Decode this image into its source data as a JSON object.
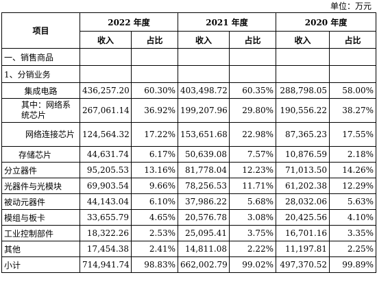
{
  "unit_label": "单位：万元",
  "header": {
    "item": "项目",
    "years": [
      "2022 年度",
      "2021 年度",
      "2020 年度"
    ],
    "income": "收入",
    "ratio": "占比"
  },
  "sections": {
    "sales": "一、销售商品",
    "distribution": "1、分销业务"
  },
  "rows": [
    {
      "label": "集成电路",
      "v": [
        "436,257.20",
        "60.30%",
        "403,498.72",
        "60.35%",
        "288,798.05",
        "58.00%"
      ]
    },
    {
      "label": "其中：网络系统芯片",
      "v": [
        "267,061.14",
        "36.92%",
        "199,207.96",
        "29.80%",
        "190,556.22",
        "38.27%"
      ]
    },
    {
      "label": "网络连接芯片",
      "v": [
        "124,564.32",
        "17.22%",
        "153,651.68",
        "22.98%",
        "87,365.23",
        "17.55%"
      ]
    },
    {
      "label": "存储芯片",
      "v": [
        "44,631.74",
        "6.17%",
        "50,639.08",
        "7.57%",
        "10,876.59",
        "2.18%"
      ]
    },
    {
      "label": "分立器件",
      "v": [
        "95,205.53",
        "13.16%",
        "81,778.04",
        "12.23%",
        "71,013.50",
        "14.26%"
      ]
    },
    {
      "label": "光器件与光模块",
      "v": [
        "69,903.54",
        "9.66%",
        "78,256.53",
        "11.71%",
        "61,202.38",
        "12.29%"
      ]
    },
    {
      "label": "被动元器件",
      "v": [
        "44,143.04",
        "6.10%",
        "37,986.22",
        "5.68%",
        "28,032.06",
        "5.63%"
      ]
    },
    {
      "label": "模组与板卡",
      "v": [
        "33,655.79",
        "4.65%",
        "20,576.78",
        "3.08%",
        "20,425.56",
        "4.10%"
      ]
    },
    {
      "label": "工业控制部件",
      "v": [
        "18,322.26",
        "2.53%",
        "25,095.41",
        "3.75%",
        "16,701.16",
        "3.35%"
      ]
    },
    {
      "label": "其他",
      "v": [
        "17,454.38",
        "2.41%",
        "14,811.08",
        "2.22%",
        "11,197.81",
        "2.25%"
      ]
    },
    {
      "label": "小计",
      "v": [
        "714,941.74",
        "98.83%",
        "662,002.79",
        "99.02%",
        "497,370.52",
        "99.89%"
      ]
    }
  ]
}
